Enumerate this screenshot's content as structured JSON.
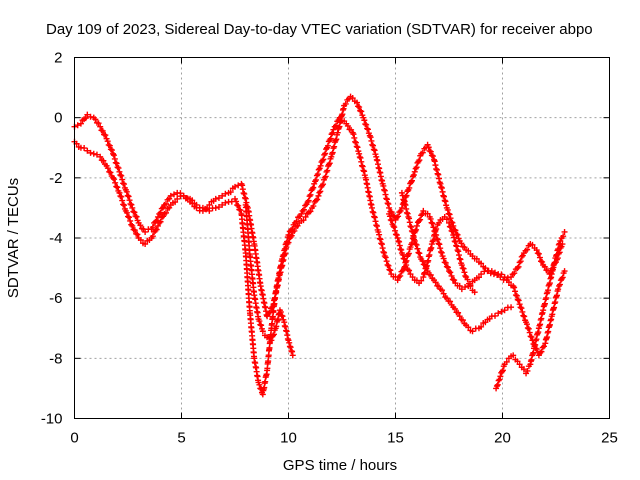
{
  "chart_data": {
    "type": "scatter",
    "title": "Day 109 of 2023, Sidereal Day-to-day VTEC variation (SDTVAR) for receiver abpo",
    "xlabel": "GPS time / hours",
    "ylabel": "SDTVAR / TECUs",
    "xlim": [
      0,
      25
    ],
    "ylim": [
      -10,
      2
    ],
    "xticks": [
      0,
      5,
      10,
      15,
      20,
      25
    ],
    "yticks": [
      -10,
      -8,
      -6,
      -4,
      -2,
      0,
      2
    ],
    "xtick_labels": [
      "0",
      "5",
      "10",
      "15",
      "20",
      "25"
    ],
    "ytick_labels": [
      "-10",
      "-8",
      "-6",
      "-4",
      "-2",
      "0",
      "2"
    ],
    "grid": true,
    "legend": "none",
    "marker": "plus",
    "color": "#ff0000",
    "series": [
      {
        "x": [
          0.0,
          0.3,
          0.6,
          0.9,
          1.2,
          1.5,
          1.8,
          2.1,
          2.4,
          2.7,
          3.0,
          3.3,
          3.6,
          3.9,
          4.2,
          4.5,
          4.8,
          5.1,
          5.4,
          5.7,
          6.0,
          6.3,
          6.6,
          6.9,
          7.2,
          7.5,
          7.8,
          8.0,
          8.2,
          8.4,
          8.6,
          8.8,
          9.0,
          9.2,
          9.4,
          9.7,
          10.0,
          10.3,
          10.6,
          10.9,
          11.2,
          11.5,
          11.8,
          12.1,
          12.4,
          12.7,
          13.0,
          13.3,
          13.6,
          13.9,
          14.2,
          14.5,
          14.8,
          15.1,
          15.4,
          15.7,
          16.0,
          16.3,
          16.6,
          16.9,
          17.2,
          17.5,
          17.8,
          18.1,
          18.4,
          18.7,
          19.0,
          19.3,
          19.6,
          19.9,
          20.2,
          20.5,
          20.8,
          21.1,
          21.4,
          21.7,
          22.0,
          22.3,
          22.6,
          22.9
        ],
        "y": [
          -0.8,
          -1.0,
          -1.1,
          -1.2,
          -1.3,
          -1.6,
          -2.0,
          -2.5,
          -3.1,
          -3.6,
          -4.0,
          -4.2,
          -4.0,
          -3.6,
          -3.2,
          -2.9,
          -2.7,
          -2.6,
          -2.7,
          -2.9,
          -3.0,
          -3.1,
          -3.0,
          -2.9,
          -2.8,
          -2.7,
          -3.2,
          -4.5,
          -6.5,
          -8.0,
          -8.8,
          -9.2,
          -8.4,
          -7.0,
          -5.8,
          -4.7,
          -3.9,
          -3.5,
          -3.2,
          -2.8,
          -2.2,
          -1.6,
          -1.0,
          -0.4,
          0.0,
          -0.2,
          -0.5,
          -1.2,
          -2.0,
          -3.0,
          -3.8,
          -4.6,
          -5.2,
          -5.4,
          -5.0,
          -4.3,
          -3.6,
          -3.1,
          -3.3,
          -3.9,
          -4.6,
          -5.1,
          -5.5,
          -5.7,
          -5.6,
          -5.4,
          -5.2,
          -5.1,
          -5.2,
          -5.3,
          -5.4,
          -5.6,
          -6.2,
          -6.8,
          -7.4,
          -7.9,
          -7.5,
          -6.6,
          -5.7,
          -5.1
        ]
      },
      {
        "x": [
          0.0,
          0.3,
          0.6,
          0.9,
          1.2,
          1.5,
          1.8,
          2.1,
          2.4,
          2.7,
          3.0,
          3.3,
          3.6,
          3.9,
          4.2,
          4.5,
          4.8,
          5.1,
          5.4,
          5.7,
          6.0,
          6.3,
          6.6,
          6.9,
          7.2,
          7.5,
          7.8,
          8.1,
          8.4,
          8.7,
          9.0,
          9.3,
          9.6,
          9.9,
          10.2,
          10.5,
          10.8,
          11.1,
          11.4,
          11.7,
          12.0,
          12.3,
          12.6,
          12.9,
          13.2,
          13.5,
          13.8,
          14.1,
          14.4,
          14.7,
          15.0,
          15.3,
          15.6,
          15.9,
          16.2,
          16.5,
          16.8,
          17.1,
          17.4,
          17.7,
          18.0,
          18.3,
          18.6,
          18.9,
          19.2,
          19.5,
          19.8,
          20.1,
          20.4,
          20.7,
          21.0,
          21.3,
          21.6,
          21.9,
          22.2,
          22.5,
          22.8
        ],
        "y": [
          -0.3,
          -0.2,
          0.1,
          0.0,
          -0.3,
          -0.7,
          -1.2,
          -1.8,
          -2.4,
          -3.0,
          -3.5,
          -3.8,
          -3.7,
          -3.3,
          -2.9,
          -2.6,
          -2.5,
          -2.6,
          -2.8,
          -3.0,
          -3.1,
          -2.9,
          -2.7,
          -2.6,
          -2.5,
          -2.3,
          -2.2,
          -3.0,
          -4.2,
          -5.6,
          -6.6,
          -6.2,
          -5.2,
          -4.3,
          -3.8,
          -3.5,
          -3.3,
          -3.0,
          -2.6,
          -2.0,
          -1.3,
          -0.5,
          0.4,
          0.7,
          0.5,
          0.0,
          -0.6,
          -1.3,
          -2.2,
          -3.0,
          -3.4,
          -3.0,
          -2.4,
          -1.8,
          -1.2,
          -0.9,
          -1.4,
          -2.2,
          -3.0,
          -3.6,
          -4.1,
          -4.4,
          -4.6,
          -4.8,
          -5.0,
          -5.1,
          -5.2,
          -5.3,
          -5.3,
          -5.0,
          -4.5,
          -4.2,
          -4.4,
          -4.9,
          -5.2,
          -4.8,
          -4.2
        ]
      },
      {
        "x": [
          8.0,
          8.2,
          8.4,
          8.6,
          8.8,
          9.0,
          9.2,
          9.4,
          9.6,
          9.8,
          10.0,
          10.2
        ],
        "y": [
          -2.9,
          -4.6,
          -5.9,
          -6.7,
          -7.1,
          -7.3,
          -7.4,
          -7.0,
          -6.4,
          -6.8,
          -7.4,
          -7.9
        ]
      },
      {
        "x": [
          15.3,
          15.6,
          15.9,
          16.2,
          16.5,
          16.8,
          17.1,
          17.4,
          17.7,
          18.0,
          18.3,
          18.6,
          18.9,
          19.2,
          19.5,
          19.8,
          20.1,
          20.4
        ],
        "y": [
          -2.5,
          -3.3,
          -4.1,
          -4.7,
          -5.1,
          -5.4,
          -5.7,
          -6.0,
          -6.3,
          -6.6,
          -6.9,
          -7.1,
          -7.0,
          -6.8,
          -6.6,
          -6.5,
          -6.4,
          -6.3
        ]
      },
      {
        "x": [
          19.7,
          19.9,
          20.1,
          20.3,
          20.5,
          20.7,
          20.9,
          21.1,
          21.3,
          21.5,
          21.7,
          21.9,
          22.1,
          22.3,
          22.5,
          22.7,
          22.9
        ],
        "y": [
          -9.0,
          -8.6,
          -8.2,
          -8.0,
          -7.9,
          -8.1,
          -8.3,
          -8.5,
          -8.2,
          -7.6,
          -7.0,
          -6.4,
          -5.8,
          -5.2,
          -4.6,
          -4.1,
          -3.8
        ]
      },
      {
        "x": [
          14.7,
          14.9,
          15.1,
          15.3,
          15.5,
          15.7,
          15.9,
          16.1,
          16.3,
          16.5,
          16.7,
          16.9,
          17.1,
          17.3,
          17.5,
          17.7,
          17.9,
          18.1,
          18.3,
          18.5,
          18.7
        ],
        "y": [
          -3.2,
          -3.6,
          -4.0,
          -4.5,
          -4.9,
          -5.2,
          -5.4,
          -5.5,
          -5.3,
          -4.8,
          -4.2,
          -3.7,
          -3.4,
          -3.3,
          -3.5,
          -3.9,
          -4.4,
          -4.9,
          -5.3,
          -5.6,
          -5.8
        ]
      }
    ]
  }
}
